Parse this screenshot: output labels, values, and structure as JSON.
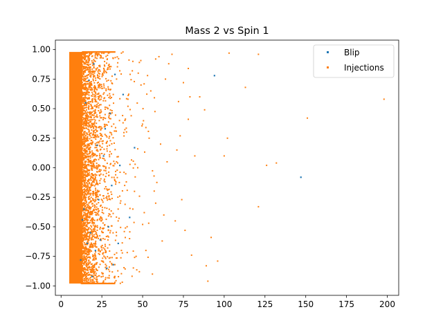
{
  "chart_data": {
    "type": "scatter",
    "title": "Mass 2 vs Spin 1",
    "xlabel": "",
    "ylabel": "",
    "xlim": [
      -3.5,
      207
    ],
    "ylim": [
      -1.08,
      1.08
    ],
    "xticks": [
      0,
      25,
      50,
      75,
      100,
      125,
      150,
      175,
      200
    ],
    "yticks": [
      -1.0,
      -0.75,
      -0.5,
      -0.25,
      0.0,
      0.25,
      0.5,
      0.75,
      1.0
    ],
    "xtick_labels": [
      "0",
      "25",
      "50",
      "75",
      "100",
      "125",
      "150",
      "175",
      "200"
    ],
    "ytick_labels": [
      "−1.00",
      "−0.75",
      "−0.50",
      "−0.25",
      "0.00",
      "0.25",
      "0.50",
      "0.75",
      "1.00"
    ],
    "grid": false,
    "legend_position": "top-right",
    "series": [
      {
        "name": "Blip",
        "color": "#1f77b4",
        "x": [
          94,
          147,
          32,
          28,
          24,
          33,
          21,
          16,
          30,
          35,
          42,
          18,
          22,
          14,
          26,
          38,
          19,
          12,
          27,
          31,
          45,
          17,
          23,
          15,
          29,
          36,
          20,
          13
        ],
        "y": [
          0.78,
          -0.08,
          -0.82,
          -0.85,
          -0.61,
          0.79,
          -0.7,
          -0.64,
          0.46,
          -0.64,
          -0.42,
          -0.55,
          0.19,
          -0.35,
          0.1,
          0.62,
          -0.92,
          -0.78,
          0.33,
          -0.15,
          0.17,
          0.74,
          -0.27,
          0.55,
          -0.5,
          0.02,
          0.88,
          -0.44
        ]
      },
      {
        "name": "Injections",
        "color": "#ff7f0e",
        "dense_region": {
          "x": [
            5,
            13
          ],
          "y": [
            -0.98,
            0.98
          ]
        },
        "x": [
          198,
          151,
          132,
          126,
          121,
          121,
          113,
          103,
          102,
          100,
          96,
          92,
          90,
          89,
          88,
          82,
          80,
          78,
          78,
          75,
          73,
          72,
          70,
          65,
          61,
          58,
          57,
          55,
          53,
          52,
          50,
          48,
          47,
          45,
          44,
          42,
          41,
          40,
          38,
          37,
          36,
          35,
          34,
          33,
          32,
          31,
          30,
          29,
          28,
          27,
          26,
          25,
          24,
          23,
          22,
          21,
          20,
          19,
          18,
          17,
          16,
          15,
          14,
          60,
          64,
          68,
          85,
          76,
          56,
          54,
          51,
          49,
          46,
          43,
          39,
          62,
          66,
          71,
          74,
          79,
          47,
          52,
          44,
          41,
          58,
          63,
          37,
          33,
          29,
          26,
          24,
          22,
          20,
          18,
          16,
          35,
          31,
          27,
          23,
          19,
          17,
          15
        ],
        "y": [
          0.58,
          0.42,
          0.04,
          0.02,
          -0.33,
          0.96,
          0.68,
          0.97,
          0.25,
          0.1,
          -0.79,
          -0.59,
          -0.96,
          -0.83,
          0.49,
          0.1,
          -0.74,
          0.41,
          0.84,
          0.72,
          0.27,
          0.56,
          -0.45,
          0.05,
          0.2,
          -0.3,
          -0.07,
          0.65,
          0.78,
          0.34,
          -0.48,
          -0.88,
          0.16,
          -0.2,
          0.9,
          -0.6,
          0.52,
          -0.12,
          0.38,
          -0.7,
          0.82,
          -0.35,
          0.05,
          -0.92,
          0.62,
          0.28,
          -0.55,
          0.74,
          -0.18,
          0.45,
          -0.8,
          0.12,
          0.93,
          -0.4,
          0.66,
          -0.66,
          0.3,
          -0.05,
          0.85,
          -0.95,
          0.55,
          -0.25,
          0.18,
          0.94,
          0.75,
          0.96,
          0.6,
          -0.53,
          -0.9,
          0.25,
          -0.38,
          0.7,
          -0.75,
          0.44,
          -0.15,
          -0.62,
          0.88,
          0.15,
          -0.27,
          0.6,
          0.0,
          -0.7,
          -0.35,
          0.58,
          0.92,
          -0.4,
          0.97,
          -0.97,
          0.97,
          -0.97,
          0.95,
          -0.95,
          0.98,
          -0.98,
          0.97,
          -0.45,
          0.35,
          -0.65,
          0.8,
          -0.85,
          0.4,
          -0.1
        ]
      }
    ]
  }
}
